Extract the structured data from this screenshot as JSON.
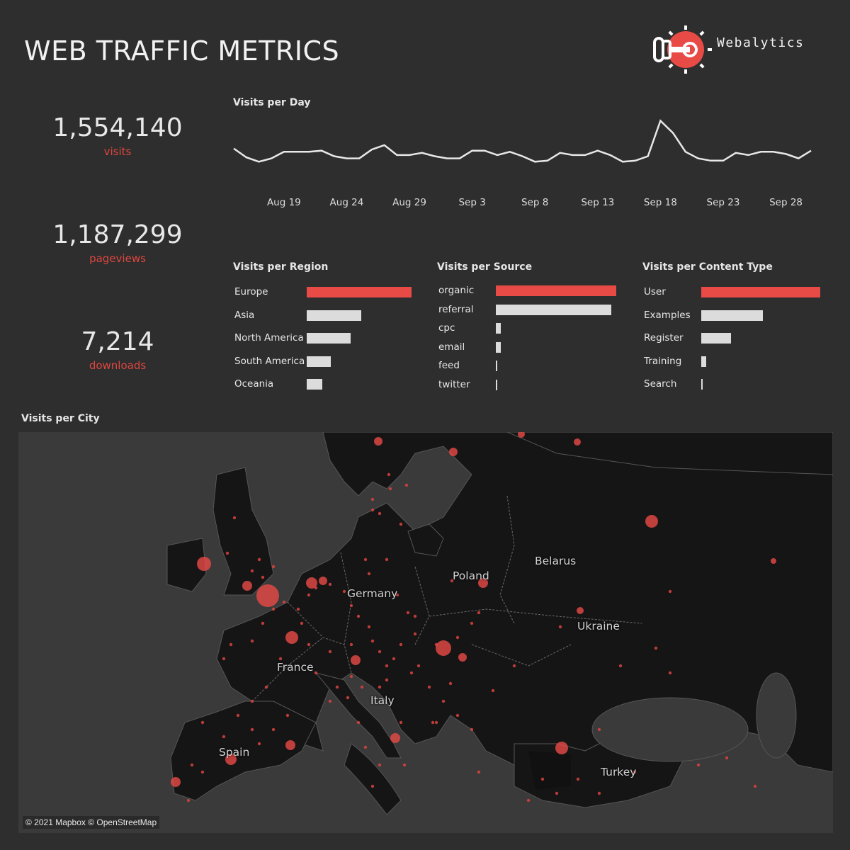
{
  "header": {
    "title": "WEB TRAFFIC METRICS",
    "brand": "Webalytics"
  },
  "kpis": [
    {
      "value": "1,554,140",
      "label": "visits"
    },
    {
      "value": "1,187,299",
      "label": "pageviews"
    },
    {
      "value": "7,214",
      "label": "downloads"
    }
  ],
  "colors": {
    "accent": "#e84a46",
    "bar": "#dcdcdc",
    "background": "#2e2e2e",
    "line": "#e8e8e8"
  },
  "chart_data": [
    {
      "type": "line",
      "title": "Visits per Day",
      "tick_labels": [
        "Aug 19",
        "Aug 24",
        "Aug 29",
        "Sep 3",
        "Sep 8",
        "Sep 13",
        "Sep 18",
        "Sep 23",
        "Sep 28"
      ],
      "x_start": "Aug 15",
      "x_end": "Oct 1",
      "values": [
        31,
        23,
        19,
        22,
        28,
        28,
        28,
        29,
        24,
        22,
        22,
        30,
        34,
        25,
        25,
        27,
        24,
        22,
        22,
        29,
        29,
        25,
        28,
        24,
        19,
        20,
        27,
        25,
        25,
        29,
        25,
        19,
        20,
        24,
        56,
        45,
        28,
        22,
        20,
        20,
        27,
        25,
        28,
        28,
        26,
        22,
        29
      ],
      "ylim": [
        0,
        64
      ],
      "grid": false
    },
    {
      "type": "bar",
      "title": "Visits per Region",
      "orientation": "horizontal",
      "categories": [
        "Europe",
        "Asia",
        "North America",
        "South America",
        "Oceania"
      ],
      "values": [
        100,
        52,
        42,
        23,
        15
      ],
      "highlight": "Europe"
    },
    {
      "type": "bar",
      "title": "Visits per Source",
      "orientation": "horizontal",
      "categories": [
        "organic",
        "referral",
        "cpc",
        "email",
        "feed",
        "twitter"
      ],
      "values": [
        100,
        96,
        4,
        4,
        1,
        1
      ],
      "highlight": "organic"
    },
    {
      "type": "bar",
      "title": "Visits per Content Type",
      "orientation": "horizontal",
      "categories": [
        "User",
        "Examples",
        "Register",
        "Training",
        "Search"
      ],
      "values": [
        100,
        52,
        25,
        4,
        1
      ],
      "highlight": "User"
    }
  ],
  "map": {
    "title": "Visits per City",
    "labels": [
      "Germany",
      "Poland",
      "Belarus",
      "Ukraine",
      "France",
      "Italy",
      "Spain",
      "Turkey"
    ],
    "attribution": "© 2021 Mapbox © OpenStreetMap"
  }
}
